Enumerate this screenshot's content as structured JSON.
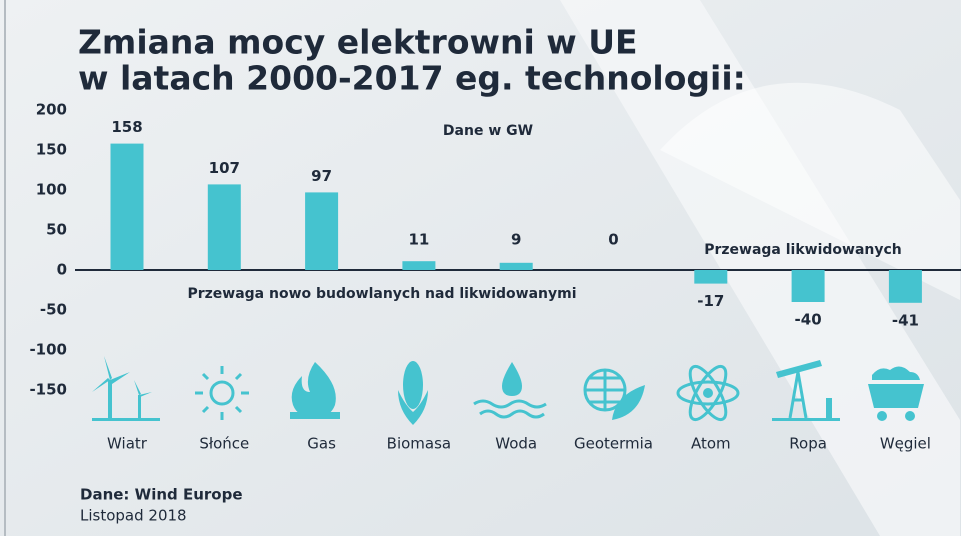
{
  "chart_data": {
    "type": "bar",
    "title": "Zmiana mocy elektrowni w UE",
    "subtitle": "w latach 2000-2017 eg. technologii:",
    "annotations": [
      "Dane w GW",
      "Przewaga likwidowanych",
      "Przewaga nowo budowlanych nad likwidowanymi"
    ],
    "source": "Dane: Wind Europe",
    "date": "Listopad 2018",
    "categories": [
      "Wiatr",
      "Słońce",
      "Gas",
      "Biomasa",
      "Woda",
      "Geotermia",
      "Atom",
      "Ropa",
      "Węgiel"
    ],
    "values": [
      158,
      107,
      97,
      11,
      9,
      0,
      -17,
      -40,
      -41
    ],
    "color": "#45c3cf",
    "ylim": [
      -150,
      200
    ],
    "yticks": [
      200,
      150,
      100,
      50,
      0,
      -50,
      -100,
      -150
    ]
  }
}
